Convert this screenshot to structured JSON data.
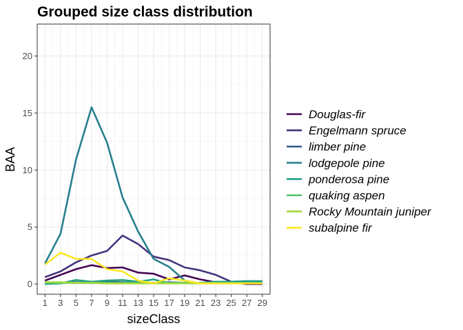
{
  "chart_data": {
    "type": "line",
    "title": "Grouped size class distribution",
    "xlabel": "sizeClass",
    "ylabel": "BAA",
    "x": [
      1,
      3,
      5,
      7,
      9,
      11,
      13,
      15,
      17,
      19,
      21,
      23,
      25,
      27,
      29
    ],
    "xticks": [
      "1",
      "3",
      "5",
      "7",
      "9",
      "11",
      "13",
      "15",
      "17",
      "19",
      "21",
      "23",
      "25",
      "27",
      "29"
    ],
    "yticks": [
      "0",
      "5",
      "10",
      "15",
      "20"
    ],
    "ylim": [
      -0.9,
      22.8
    ],
    "xlim": [
      0,
      30
    ],
    "grid": true,
    "legend_position": "right",
    "series": [
      {
        "name": "Douglas-fir",
        "color": "#440154",
        "values": [
          0.3,
          0.8,
          1.3,
          1.65,
          1.4,
          1.45,
          1.0,
          0.9,
          0.4,
          0.75,
          0.4,
          0.15,
          0.15,
          0.0,
          0.0
        ]
      },
      {
        "name": "Engelmann spruce",
        "color": "#46337e",
        "values": [
          0.6,
          1.1,
          1.9,
          2.5,
          2.9,
          4.25,
          3.5,
          2.4,
          2.1,
          1.45,
          1.2,
          0.8,
          0.2,
          0.05,
          0.05
        ]
      },
      {
        "name": "limber pine",
        "color": "#365c8d",
        "values": [
          0.05,
          0.1,
          0.15,
          0.1,
          0.2,
          0.15,
          0.1,
          0.1,
          0.15,
          0.1,
          0.1,
          0.1,
          0.1,
          0.1,
          0.1
        ]
      },
      {
        "name": "lodgepole pine",
        "color": "#277f8e",
        "values": [
          1.8,
          4.4,
          10.9,
          15.5,
          12.4,
          7.6,
          4.6,
          2.2,
          1.5,
          0.3,
          0.05,
          0.1,
          0.2,
          0.25,
          0.2
        ]
      },
      {
        "name": "ponderosa pine",
        "color": "#1fa187",
        "values": [
          0.0,
          0.05,
          0.35,
          0.2,
          0.3,
          0.35,
          0.2,
          0.4,
          0.05,
          0.1,
          0.1,
          0.2,
          0.2,
          0.25,
          0.25
        ]
      },
      {
        "name": "quaking aspen",
        "color": "#4ac16d",
        "values": [
          0.1,
          0.1,
          0.1,
          0.1,
          0.1,
          0.1,
          0.1,
          0.1,
          0.1,
          0.1,
          0.1,
          0.1,
          0.1,
          0.1,
          0.1
        ]
      },
      {
        "name": "Rocky Mountain juniper",
        "color": "#a0da39",
        "values": [
          0.15,
          0.15,
          0.1,
          0.1,
          0.05,
          0.05,
          0.05,
          0.05,
          0.05,
          0.05,
          0.05,
          0.05,
          0.05,
          0.05,
          0.05
        ]
      },
      {
        "name": "subalpine fir",
        "color": "#fde725",
        "values": [
          1.7,
          2.75,
          2.2,
          2.2,
          1.3,
          1.1,
          0.3,
          0.05,
          0.5,
          0.3,
          0.05,
          0.05,
          0.05,
          0.05,
          0.05
        ]
      }
    ]
  }
}
